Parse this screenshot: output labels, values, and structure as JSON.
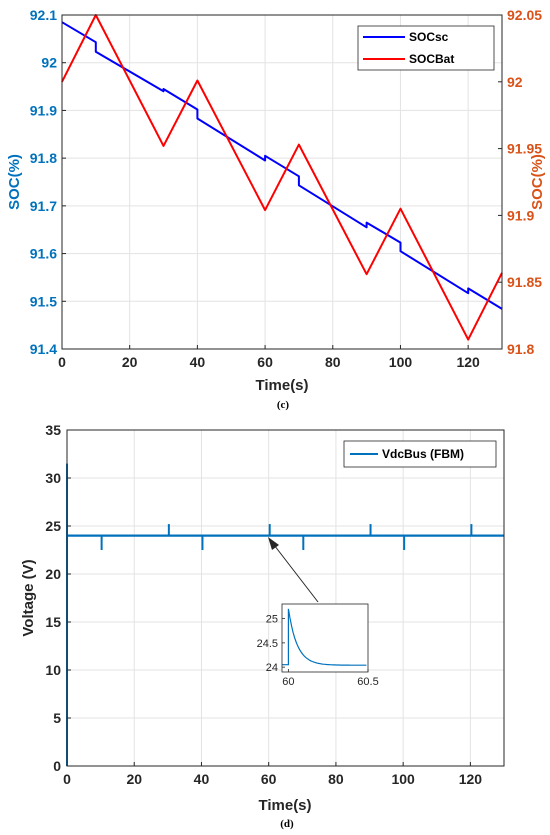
{
  "chart_data": [
    {
      "type": "line",
      "caption": "(c)",
      "xlabel": "Time(s)",
      "ylabel_left": "SOC(%)",
      "ylabel_right": "SOC(%)",
      "xlim": [
        0,
        130
      ],
      "ylim_left": [
        91.4,
        92.1
      ],
      "ylim_right": [
        91.8,
        92.05
      ],
      "x_ticks": [
        "0",
        "20",
        "40",
        "60",
        "80",
        "100",
        "120"
      ],
      "y_left_ticks": [
        "91.4",
        "91.5",
        "91.6",
        "91.7",
        "91.8",
        "91.9",
        "92",
        "92.1"
      ],
      "y_right_ticks": [
        "91.8",
        "91.85",
        "91.9",
        "91.95",
        "92",
        "92.05"
      ],
      "grid": true,
      "legend_position": "top-right",
      "left_axis_color": "#0072BD",
      "right_axis_color": "#D95319",
      "series": [
        {
          "name": "SOCsc",
          "axis": "left",
          "color": "#0000FF",
          "x": [
            0,
            10,
            10,
            30,
            30,
            40,
            40,
            60,
            60,
            70,
            70,
            90,
            90,
            100,
            100,
            120,
            120,
            130
          ],
          "y": [
            92.085,
            92.043,
            92.023,
            91.94,
            91.945,
            91.902,
            91.883,
            91.795,
            91.805,
            91.762,
            91.743,
            91.655,
            91.665,
            91.623,
            91.605,
            91.517,
            91.527,
            91.484
          ]
        },
        {
          "name": "SOCBat",
          "axis": "right",
          "color": "#FF0000",
          "x": [
            0,
            10,
            30,
            40,
            60,
            70,
            90,
            100,
            120,
            130
          ],
          "y": [
            92.0,
            92.05,
            91.952,
            92.001,
            91.904,
            91.953,
            91.856,
            91.905,
            91.807,
            91.857
          ]
        }
      ]
    },
    {
      "type": "line",
      "caption": "(d)",
      "xlabel": "Time(s)",
      "ylabel": "Voltage (V)",
      "xlim": [
        0,
        130
      ],
      "ylim": [
        0,
        35
      ],
      "x_ticks": [
        "0",
        "20",
        "40",
        "60",
        "80",
        "100",
        "120"
      ],
      "y_ticks": [
        "0",
        "5",
        "10",
        "15",
        "20",
        "25",
        "30",
        "35"
      ],
      "grid": true,
      "legend_position": "top-right",
      "nominal_voltage": 24,
      "startup_peak": 31.5,
      "spikes": [
        {
          "t": 10,
          "v": 22.5
        },
        {
          "t": 30,
          "v": 25.2
        },
        {
          "t": 40,
          "v": 22.5
        },
        {
          "t": 60,
          "v": 25.2
        },
        {
          "t": 70,
          "v": 22.5
        },
        {
          "t": 90,
          "v": 25.2
        },
        {
          "t": 100,
          "v": 22.5
        },
        {
          "t": 120,
          "v": 25.2
        }
      ],
      "series": [
        {
          "name": "VdcBus (FBM)",
          "color": "#0072BD"
        }
      ],
      "inset": {
        "xlim": [
          59.96,
          60.5
        ],
        "ylim": [
          23.9,
          25.3
        ],
        "x_ticks": [
          "60",
          "60.5"
        ],
        "y_ticks": [
          "24",
          "24.5",
          "25"
        ],
        "base_level": 24.05,
        "peak": 25.2,
        "step_time": 60,
        "settled_level": 24.04
      }
    }
  ]
}
